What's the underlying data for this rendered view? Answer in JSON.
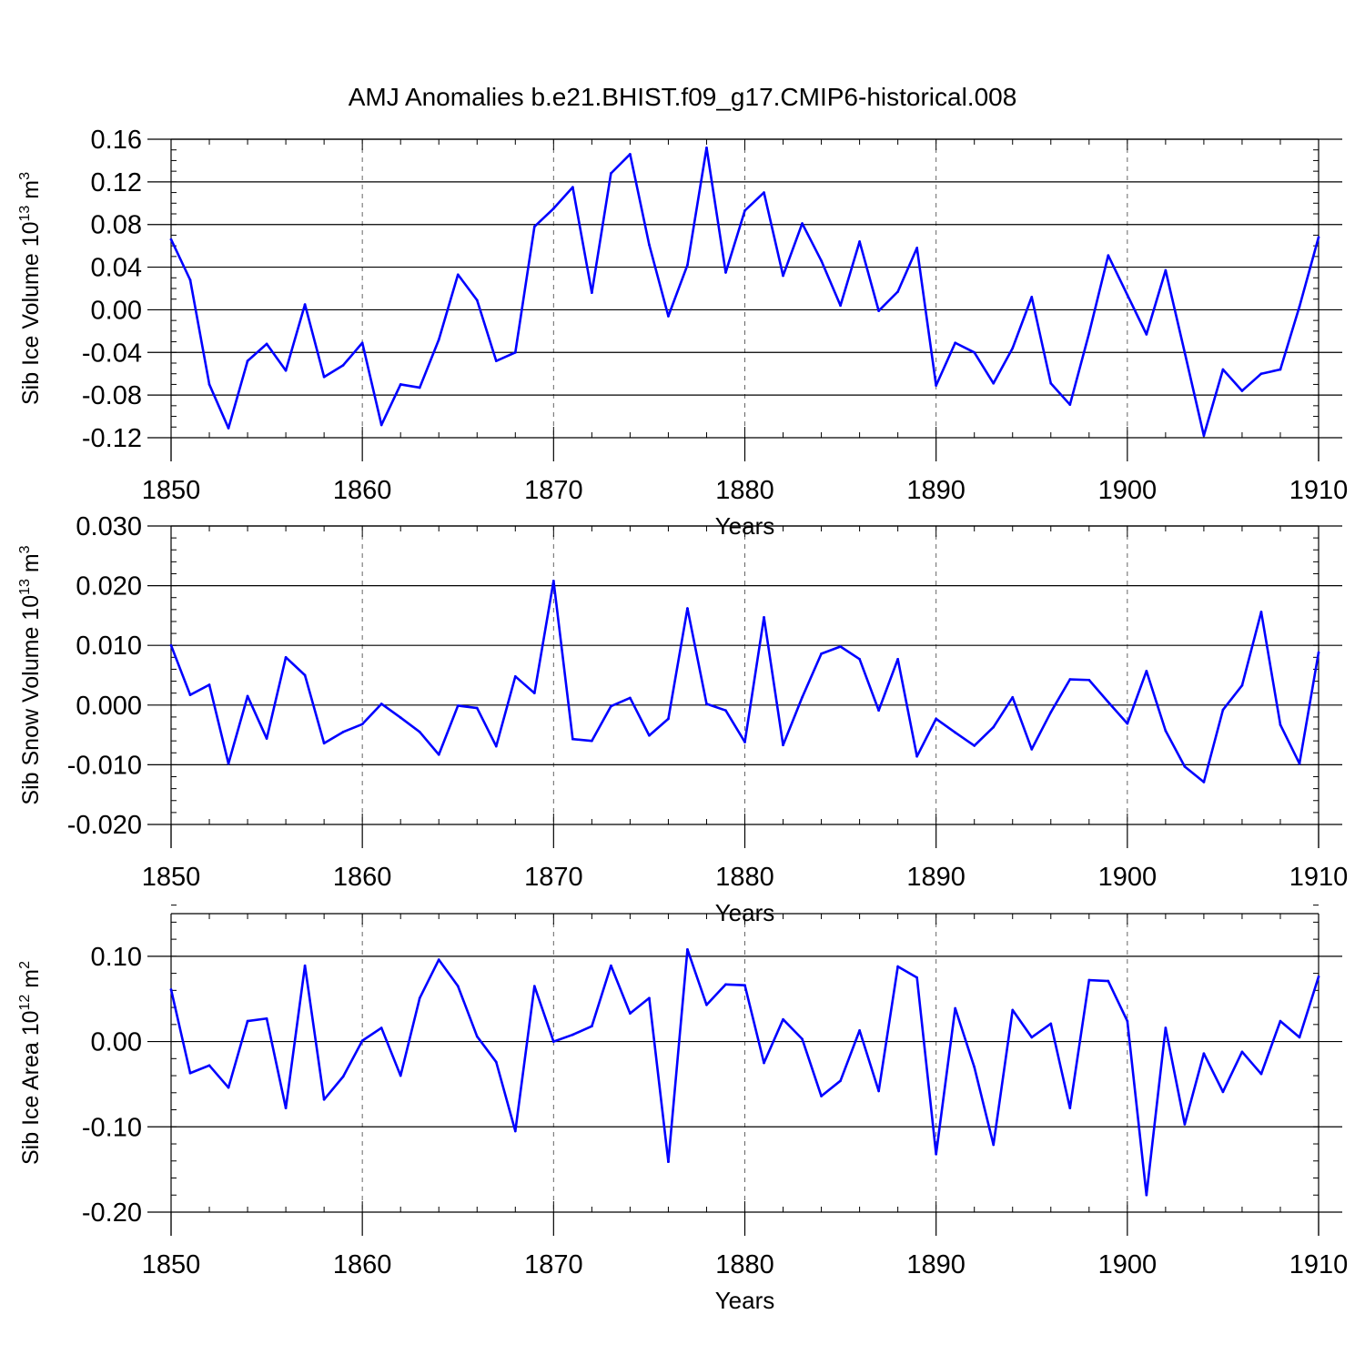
{
  "figure_title": "AMJ Anomalies b.e21.BHIST.f09_g17.CMIP6-historical.008",
  "line_color": "#0000ff",
  "chart_data": [
    {
      "type": "line",
      "name": "sib-ice-volume",
      "ylabel": "Sib Ice Volume 10",
      "ylabel_exp": "13",
      "ylabel_unit": " m",
      "ylabel_unit_exp": "3",
      "xlabel": "Years",
      "xlim": [
        1850,
        1910
      ],
      "ylim": [
        -0.12,
        0.16
      ],
      "yticks": [
        -0.12,
        -0.08,
        -0.04,
        0.0,
        0.04,
        0.08,
        0.12,
        0.16
      ],
      "ytick_labels": [
        "-0.12",
        "-0.08",
        "-0.04",
        "0.00",
        "0.04",
        "0.08",
        "0.12",
        "0.16"
      ],
      "yminor_step": 0.01,
      "xticks": [
        1850,
        1860,
        1870,
        1880,
        1890,
        1900,
        1910
      ],
      "xtick_labels": [
        "1850",
        "1860",
        "1870",
        "1880",
        "1890",
        "1900",
        "1910"
      ],
      "x": [
        1850,
        1851,
        1852,
        1853,
        1854,
        1855,
        1856,
        1857,
        1858,
        1859,
        1860,
        1861,
        1862,
        1863,
        1864,
        1865,
        1866,
        1867,
        1868,
        1869,
        1870,
        1871,
        1872,
        1873,
        1874,
        1875,
        1876,
        1877,
        1878,
        1879,
        1880,
        1881,
        1882,
        1883,
        1884,
        1885,
        1886,
        1887,
        1888,
        1889,
        1890,
        1891,
        1892,
        1893,
        1894,
        1895,
        1896,
        1897,
        1898,
        1899,
        1900,
        1901,
        1902,
        1903,
        1904,
        1905,
        1906,
        1907,
        1908,
        1909,
        1910
      ],
      "values": [
        0.066,
        0.028,
        -0.07,
        -0.111,
        -0.048,
        -0.032,
        -0.057,
        0.005,
        -0.063,
        -0.052,
        -0.031,
        -0.108,
        -0.07,
        -0.073,
        -0.028,
        0.033,
        0.009,
        -0.048,
        -0.04,
        0.078,
        0.095,
        0.115,
        0.016,
        0.128,
        0.146,
        0.061,
        -0.006,
        0.042,
        0.152,
        0.035,
        0.093,
        0.11,
        0.032,
        0.081,
        0.046,
        0.004,
        0.064,
        -0.001,
        0.017,
        0.058,
        -0.071,
        -0.031,
        -0.04,
        -0.069,
        -0.036,
        0.012,
        -0.069,
        -0.089,
        -0.022,
        0.051,
        0.014,
        -0.023,
        0.037,
        -0.04,
        -0.118,
        -0.056,
        -0.076,
        -0.06,
        -0.056,
        0.003,
        0.068
      ]
    },
    {
      "type": "line",
      "name": "sib-snow-volume",
      "ylabel": "Sib Snow Volume 10",
      "ylabel_exp": "13",
      "ylabel_unit": " m",
      "ylabel_unit_exp": "3",
      "xlabel": "Years",
      "xlim": [
        1850,
        1910
      ],
      "ylim": [
        -0.02,
        0.03
      ],
      "yticks": [
        -0.02,
        -0.01,
        0.0,
        0.01,
        0.02,
        0.03
      ],
      "ytick_labels": [
        "-0.020",
        "-0.010",
        "0.000",
        "0.010",
        "0.020",
        "0.030"
      ],
      "yminor_step": 0.002,
      "xticks": [
        1850,
        1860,
        1870,
        1880,
        1890,
        1900,
        1910
      ],
      "xtick_labels": [
        "1850",
        "1860",
        "1870",
        "1880",
        "1890",
        "1900",
        "1910"
      ],
      "x": [
        1850,
        1851,
        1852,
        1853,
        1854,
        1855,
        1856,
        1857,
        1858,
        1859,
        1860,
        1861,
        1862,
        1863,
        1864,
        1865,
        1866,
        1867,
        1868,
        1869,
        1870,
        1871,
        1872,
        1873,
        1874,
        1875,
        1876,
        1877,
        1878,
        1879,
        1880,
        1881,
        1882,
        1883,
        1884,
        1885,
        1886,
        1887,
        1888,
        1889,
        1890,
        1891,
        1892,
        1893,
        1894,
        1895,
        1896,
        1897,
        1898,
        1899,
        1900,
        1901,
        1902,
        1903,
        1904,
        1905,
        1906,
        1907,
        1908,
        1909,
        1910
      ],
      "values": [
        0.01,
        0.0017,
        0.0034,
        -0.0098,
        0.0015,
        -0.0056,
        0.008,
        0.005,
        -0.0064,
        -0.0045,
        -0.0032,
        0.0002,
        -0.0021,
        -0.0045,
        -0.0083,
        -0.0001,
        -0.0005,
        -0.0069,
        0.0048,
        0.002,
        0.0208,
        -0.0057,
        -0.006,
        -0.0002,
        0.0012,
        -0.0051,
        -0.0023,
        0.0162,
        0.0002,
        -0.0009,
        -0.0062,
        0.0147,
        -0.0067,
        0.0013,
        0.0086,
        0.0098,
        0.0077,
        -0.0009,
        0.0077,
        -0.0086,
        -0.0023,
        -0.0046,
        -0.0068,
        -0.0037,
        0.0013,
        -0.0074,
        -0.0012,
        0.0043,
        0.0042,
        0.0005,
        -0.0031,
        0.0057,
        -0.0043,
        -0.0103,
        -0.0129,
        -0.0008,
        0.0033,
        0.0156,
        -0.0033,
        -0.0098,
        0.0088
      ]
    },
    {
      "type": "line",
      "name": "sib-ice-area",
      "ylabel": "Sib Ice Area 10",
      "ylabel_exp": "12",
      "ylabel_unit": " m",
      "ylabel_unit_exp": "2",
      "xlabel": "Years",
      "xlim": [
        1850,
        1910
      ],
      "ylim": [
        -0.2,
        0.15
      ],
      "yticks": [
        -0.2,
        -0.1,
        0.0,
        0.1
      ],
      "ytick_labels": [
        "-0.20",
        "-0.10",
        "0.00",
        "0.10"
      ],
      "yminor_step": 0.02,
      "xticks": [
        1850,
        1860,
        1870,
        1880,
        1890,
        1900,
        1910
      ],
      "xtick_labels": [
        "1850",
        "1860",
        "1870",
        "1880",
        "1890",
        "1900",
        "1910"
      ],
      "x": [
        1850,
        1851,
        1852,
        1853,
        1854,
        1855,
        1856,
        1857,
        1858,
        1859,
        1860,
        1861,
        1862,
        1863,
        1864,
        1865,
        1866,
        1867,
        1868,
        1869,
        1870,
        1871,
        1872,
        1873,
        1874,
        1875,
        1876,
        1877,
        1878,
        1879,
        1880,
        1881,
        1882,
        1883,
        1884,
        1885,
        1886,
        1887,
        1888,
        1889,
        1890,
        1891,
        1892,
        1893,
        1894,
        1895,
        1896,
        1897,
        1898,
        1899,
        1900,
        1901,
        1902,
        1903,
        1904,
        1905,
        1906,
        1907,
        1908,
        1909,
        1910
      ],
      "values": [
        0.061,
        -0.037,
        -0.028,
        -0.054,
        0.024,
        0.027,
        -0.078,
        0.089,
        -0.068,
        -0.041,
        0.001,
        0.016,
        -0.04,
        0.051,
        0.096,
        0.065,
        0.006,
        -0.024,
        -0.105,
        0.065,
        0.0,
        0.008,
        0.018,
        0.089,
        0.033,
        0.051,
        -0.141,
        0.108,
        0.043,
        0.067,
        0.066,
        -0.025,
        0.026,
        0.003,
        -0.064,
        -0.046,
        0.013,
        -0.058,
        0.088,
        0.075,
        -0.132,
        0.039,
        -0.03,
        -0.121,
        0.037,
        0.005,
        0.021,
        -0.078,
        0.072,
        0.071,
        0.024,
        -0.18,
        0.016,
        -0.097,
        -0.014,
        -0.059,
        -0.012,
        -0.038,
        0.024,
        0.005,
        0.076
      ]
    }
  ]
}
